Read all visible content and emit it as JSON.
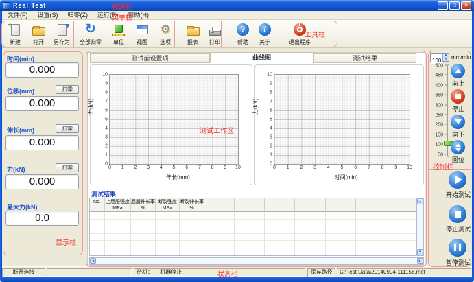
{
  "window": {
    "title": "Real Test",
    "buttons": {
      "minimize": "_",
      "maximize": "□",
      "close": "×"
    }
  },
  "annotations": {
    "title_bar": "标题栏",
    "menu_bar": "菜单栏",
    "toolbar": "工具栏",
    "work_area": "测试工作区",
    "display_bar": "显示栏",
    "control_bar": "控制栏",
    "status_bar": "状态栏"
  },
  "menu": {
    "items": [
      "文件(F)",
      "设置(S)",
      "归零(Z)",
      "运行(R)",
      "帮助(H)"
    ]
  },
  "toolbar": {
    "items": [
      {
        "label": "新建",
        "icon": "new-document-icon"
      },
      {
        "label": "打开",
        "icon": "open-folder-icon"
      },
      {
        "label": "另存为",
        "icon": "save-as-icon"
      },
      {
        "label": "全部归零",
        "icon": "zero-all-icon"
      },
      {
        "label": "单位",
        "icon": "unit-icon"
      },
      {
        "label": "视图",
        "icon": "view-window-icon"
      },
      {
        "label": "选项",
        "icon": "options-gear-icon"
      },
      {
        "label": "报表",
        "icon": "report-folder-icon"
      },
      {
        "label": "打印",
        "icon": "printer-icon"
      },
      {
        "label": "帮助",
        "icon": "help-question-icon"
      },
      {
        "label": "关于",
        "icon": "about-info-icon"
      },
      {
        "label": "退出程序",
        "icon": "exit-power-icon"
      }
    ]
  },
  "display_panel": {
    "zero_label": "归零",
    "fields": [
      {
        "label": "时间(min)",
        "value": "0.000",
        "has_zero": false
      },
      {
        "label": "位移(mm)",
        "value": "0.000",
        "has_zero": true
      },
      {
        "label": "伸长(mm)",
        "value": "0.000",
        "has_zero": true
      },
      {
        "label": "力(kN)",
        "value": "0.000",
        "has_zero": true
      },
      {
        "label": "最大力(kN)",
        "value": "0.0",
        "has_zero": false
      }
    ]
  },
  "tabs": {
    "items": [
      "测试前设置项",
      "曲线图",
      "测试结果"
    ],
    "active_index": 1
  },
  "chart_data": [
    {
      "type": "line",
      "title": "",
      "xlabel": "伸长(mm)",
      "ylabel": "力(kN)",
      "xlim": [
        0,
        10
      ],
      "ylim": [
        0,
        10
      ],
      "xticks": [
        "0",
        "1",
        "2",
        "3",
        "4",
        "5",
        "6",
        "7",
        "8",
        "9",
        "10"
      ],
      "yticks": [
        "0",
        "1",
        "2",
        "3",
        "4",
        "5",
        "6",
        "7",
        "8",
        "9",
        "10"
      ],
      "grid": true,
      "legend": false,
      "series": []
    },
    {
      "type": "line",
      "title": "",
      "xlabel": "时间(min)",
      "ylabel": "力(kN)",
      "xlim": [
        0,
        10
      ],
      "ylim": [
        0,
        10
      ],
      "xticks": [
        "0",
        "1",
        "2",
        "3",
        "4",
        "5",
        "6",
        "7",
        "8",
        "9",
        "10"
      ],
      "yticks": [
        "0",
        "1",
        "2",
        "3",
        "4",
        "5",
        "6",
        "7",
        "8",
        "9",
        "10"
      ],
      "grid": true,
      "legend": false,
      "series": []
    }
  ],
  "results": {
    "title": "测试结果",
    "columns": [
      {
        "label": "No.",
        "unit": ""
      },
      {
        "label": "上屈服强度",
        "unit": "MPa"
      },
      {
        "label": "屈服伸长率",
        "unit": "%"
      },
      {
        "label": "断裂强度",
        "unit": "MPa"
      },
      {
        "label": "断裂伸长率",
        "unit": "%"
      }
    ],
    "rows": []
  },
  "control_panel": {
    "speed_value": "100",
    "speed_unit": "mm/min",
    "slider_ticks": [
      "500",
      "450",
      "400",
      "350",
      "300",
      "250",
      "200",
      "150",
      "100",
      "50"
    ],
    "slider_value": "100",
    "motion_buttons": [
      {
        "label": "向上",
        "icon": "jog-up-icon"
      },
      {
        "label": "停止",
        "icon": "jog-stop-icon"
      },
      {
        "label": "向下",
        "icon": "jog-down-icon"
      },
      {
        "label": "回位",
        "icon": "return-icon"
      }
    ],
    "test_buttons": [
      {
        "label": "开始测试",
        "icon": "start-test-icon"
      },
      {
        "label": "停止测试",
        "icon": "stop-test-icon"
      },
      {
        "label": "暂停测试",
        "icon": "pause-test-icon"
      }
    ]
  },
  "status_bar": {
    "connection": "断开连接",
    "standby_label": "待机：",
    "machine_state": "机器停止",
    "save_path_label": "保存路径",
    "save_path": "C:\\Test Data\\20140904-111156.mcf"
  },
  "colors": {
    "annotation_red": "#fb2a2a",
    "field_label_blue": "#2255cc",
    "titlebar_blue": "#155AD8",
    "orb_blue": "#2f7fd8",
    "orb_red": "#da4527",
    "slider_handle_green": "#5cb832"
  }
}
